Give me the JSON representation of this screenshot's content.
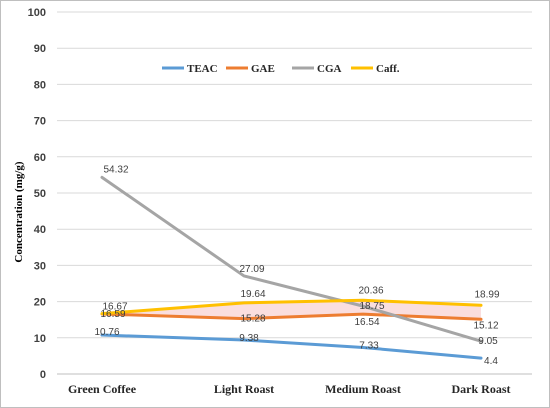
{
  "chart_data": {
    "type": "line",
    "title": "",
    "xlabel": "",
    "ylabel": "Concentration (mg/g)",
    "ylim": [
      0,
      100
    ],
    "yticks": [
      "0",
      "10",
      "20",
      "30",
      "40",
      "50",
      "60",
      "70",
      "80",
      "90",
      "100"
    ],
    "grid": true,
    "legend_position": "top",
    "categories": [
      "Green Coffee",
      "Light Roast",
      "Medium Roast",
      "Dark Roast"
    ],
    "series": [
      {
        "name": "TEAC",
        "color": "#5b9bd5",
        "values": [
          10.76,
          9.38,
          7.33,
          4.4
        ],
        "labels": [
          "10.76",
          "9.38",
          "7.33",
          "4.4"
        ]
      },
      {
        "name": "GAE",
        "color": "#ed7d31",
        "values": [
          16.59,
          15.28,
          16.54,
          15.12
        ],
        "labels": [
          "16.59",
          "15.28",
          "16.54",
          "15.12"
        ]
      },
      {
        "name": "CGA",
        "color": "#a5a5a5",
        "values": [
          54.32,
          27.09,
          18.75,
          9.05
        ],
        "labels": [
          "54.32",
          "27.09",
          "18.75",
          "9.05"
        ]
      },
      {
        "name": "Caff.",
        "color": "#ffc000",
        "values": [
          16.67,
          19.64,
          20.36,
          18.99
        ],
        "labels": [
          "16.67",
          "19.64",
          "20.36",
          "18.99"
        ]
      }
    ]
  }
}
